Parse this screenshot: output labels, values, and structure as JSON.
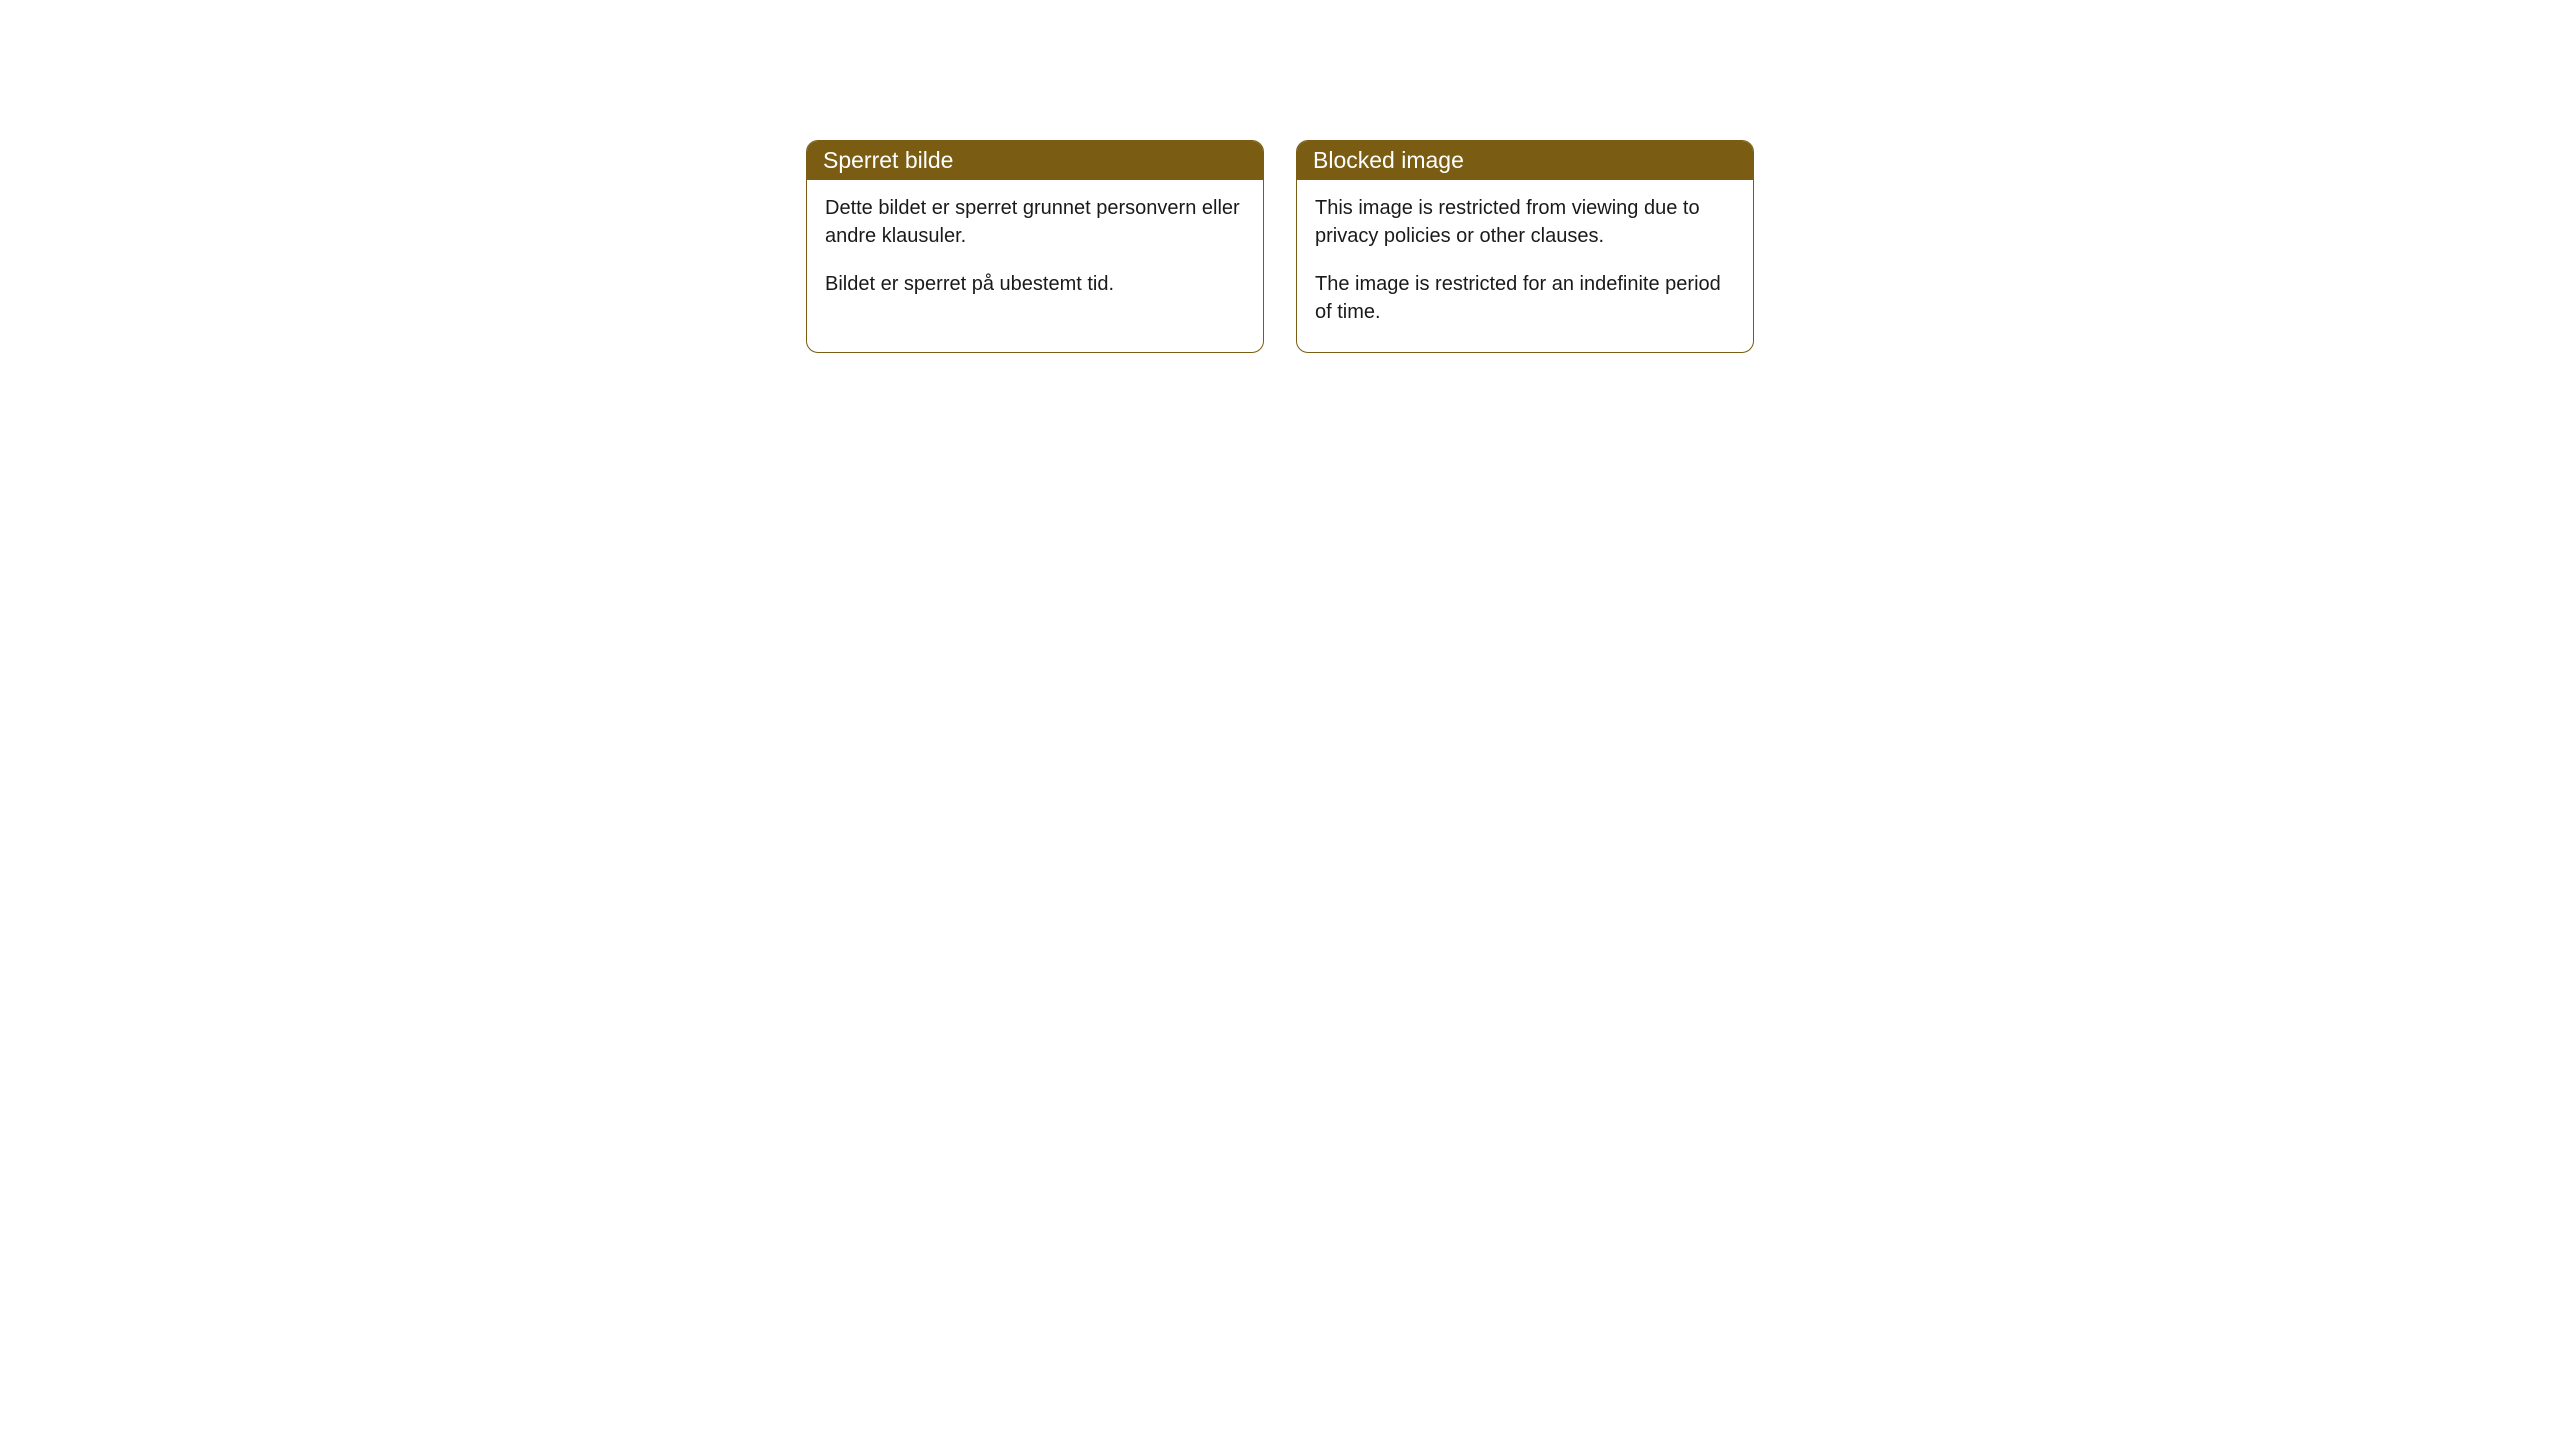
{
  "cards": [
    {
      "title": "Sperret bilde",
      "paragraph1": "Dette bildet er sperret grunnet personvern eller andre klausuler.",
      "paragraph2": "Bildet er sperret på ubestemt tid."
    },
    {
      "title": "Blocked image",
      "paragraph1": "This image is restricted from viewing due to privacy policies or other clauses.",
      "paragraph2": "The image is restricted for an indefinite period of time."
    }
  ],
  "styling": {
    "header_bg_color": "#7a5d12",
    "header_text_color": "#ffffff",
    "border_color": "#7a5d12",
    "body_bg_color": "#ffffff",
    "body_text_color": "#1a1a1a",
    "border_radius": 12,
    "title_fontsize": 23,
    "body_fontsize": 20
  }
}
